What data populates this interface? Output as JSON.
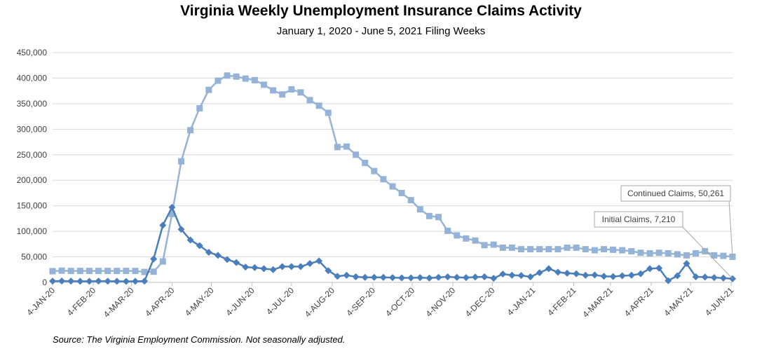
{
  "chart_data": {
    "type": "line",
    "title": "Virginia Weekly Unemployment Insurance Claims Activity",
    "subtitle": "January 1, 2020 - June 5, 2021 Filing Weeks",
    "source": "Source: The Virginia Employment Commission. Not seasonally adjusted.",
    "y_ticks": [
      "0",
      "50,000",
      "100,000",
      "150,000",
      "200,000",
      "250,000",
      "300,000",
      "350,000",
      "400,000",
      "450,000"
    ],
    "ylim": [
      0,
      450000
    ],
    "x_tick_labels": [
      "4-JAN-20",
      "4-FEB-20",
      "4-MAR-20",
      "4-APR-20",
      "4-MAY-20",
      "4-JUN-20",
      "4-JUL-20",
      "4-AUG-20",
      "4-SEP-20",
      "4-OCT-20",
      "4-NOV-20",
      "4-DEC-20",
      "4-JAN-21",
      "4-FEB-21",
      "4-MAR-21",
      "4-APR-21",
      "4-MAY-21",
      "4-JUN-21"
    ],
    "x_tick_dates": [
      "2020-01-04",
      "2020-02-04",
      "2020-03-04",
      "2020-04-04",
      "2020-05-04",
      "2020-06-04",
      "2020-07-04",
      "2020-08-04",
      "2020-09-04",
      "2020-10-04",
      "2020-11-04",
      "2020-12-04",
      "2021-01-04",
      "2021-02-04",
      "2021-03-04",
      "2021-04-04",
      "2021-05-04",
      "2021-06-04"
    ],
    "x_range": [
      "2020-01-04",
      "2021-06-05"
    ],
    "grid": true,
    "series": [
      {
        "name": "Initial Claims",
        "color": "#4a7ebb",
        "marker": "diamond",
        "points": [
          [
            "2020-01-04",
            2500
          ],
          [
            "2020-01-11",
            2800
          ],
          [
            "2020-01-18",
            2500
          ],
          [
            "2020-01-25",
            2300
          ],
          [
            "2020-02-01",
            2300
          ],
          [
            "2020-02-08",
            2500
          ],
          [
            "2020-02-15",
            2400
          ],
          [
            "2020-02-22",
            2200
          ],
          [
            "2020-02-29",
            2100
          ],
          [
            "2020-03-07",
            2200
          ],
          [
            "2020-03-14",
            2500
          ],
          [
            "2020-03-21",
            46000
          ],
          [
            "2020-03-28",
            112000
          ],
          [
            "2020-04-04",
            147000
          ],
          [
            "2020-04-11",
            104000
          ],
          [
            "2020-04-18",
            83000
          ],
          [
            "2020-04-25",
            72000
          ],
          [
            "2020-05-02",
            59000
          ],
          [
            "2020-05-09",
            53000
          ],
          [
            "2020-05-16",
            45000
          ],
          [
            "2020-05-23",
            39000
          ],
          [
            "2020-05-30",
            30000
          ],
          [
            "2020-06-06",
            29000
          ],
          [
            "2020-06-13",
            27000
          ],
          [
            "2020-06-20",
            25000
          ],
          [
            "2020-06-27",
            31000
          ],
          [
            "2020-07-04",
            31000
          ],
          [
            "2020-07-11",
            31000
          ],
          [
            "2020-07-18",
            37000
          ],
          [
            "2020-07-25",
            42000
          ],
          [
            "2020-08-01",
            23000
          ],
          [
            "2020-08-08",
            12000
          ],
          [
            "2020-08-15",
            14000
          ],
          [
            "2020-08-22",
            11000
          ],
          [
            "2020-08-29",
            10000
          ],
          [
            "2020-09-05",
            10000
          ],
          [
            "2020-09-12",
            10000
          ],
          [
            "2020-09-19",
            9500
          ],
          [
            "2020-09-26",
            9000
          ],
          [
            "2020-10-03",
            9000
          ],
          [
            "2020-10-10",
            9500
          ],
          [
            "2020-10-17",
            8500
          ],
          [
            "2020-10-24",
            10000
          ],
          [
            "2020-10-31",
            11000
          ],
          [
            "2020-11-07",
            10000
          ],
          [
            "2020-11-14",
            9500
          ],
          [
            "2020-11-21",
            10500
          ],
          [
            "2020-11-28",
            11000
          ],
          [
            "2020-12-05",
            8000
          ],
          [
            "2020-12-12",
            16500
          ],
          [
            "2020-12-19",
            14000
          ],
          [
            "2020-12-26",
            13500
          ],
          [
            "2021-01-02",
            11000
          ],
          [
            "2021-01-09",
            19000
          ],
          [
            "2021-01-16",
            27000
          ],
          [
            "2021-01-23",
            20000
          ],
          [
            "2021-01-30",
            18000
          ],
          [
            "2021-02-06",
            17000
          ],
          [
            "2021-02-13",
            14000
          ],
          [
            "2021-02-20",
            14500
          ],
          [
            "2021-02-27",
            12000
          ],
          [
            "2021-03-06",
            11500
          ],
          [
            "2021-03-13",
            13000
          ],
          [
            "2021-03-20",
            14000
          ],
          [
            "2021-03-27",
            17000
          ],
          [
            "2021-04-03",
            27000
          ],
          [
            "2021-04-10",
            28000
          ],
          [
            "2021-04-17",
            3500
          ],
          [
            "2021-04-24",
            13000
          ],
          [
            "2021-05-01",
            37000
          ],
          [
            "2021-05-08",
            11000
          ],
          [
            "2021-05-15",
            10500
          ],
          [
            "2021-05-22",
            9500
          ],
          [
            "2021-05-29",
            8500
          ],
          [
            "2021-06-05",
            7210
          ]
        ]
      },
      {
        "name": "Continued Claims",
        "color": "#95b3d7",
        "marker": "square",
        "points": [
          [
            "2020-01-04",
            22000
          ],
          [
            "2020-01-11",
            23000
          ],
          [
            "2020-01-18",
            22500
          ],
          [
            "2020-01-25",
            22500
          ],
          [
            "2020-02-01",
            22500
          ],
          [
            "2020-02-08",
            22500
          ],
          [
            "2020-02-15",
            22500
          ],
          [
            "2020-02-22",
            22500
          ],
          [
            "2020-02-29",
            22500
          ],
          [
            "2020-03-07",
            22500
          ],
          [
            "2020-03-14",
            20500
          ],
          [
            "2020-03-21",
            21000
          ],
          [
            "2020-03-28",
            41000
          ],
          [
            "2020-04-04",
            134000
          ],
          [
            "2020-04-11",
            237000
          ],
          [
            "2020-04-18",
            298000
          ],
          [
            "2020-04-25",
            341000
          ],
          [
            "2020-05-02",
            377000
          ],
          [
            "2020-05-09",
            395000
          ],
          [
            "2020-05-16",
            405000
          ],
          [
            "2020-05-23",
            403000
          ],
          [
            "2020-05-30",
            399000
          ],
          [
            "2020-06-06",
            396000
          ],
          [
            "2020-06-13",
            387000
          ],
          [
            "2020-06-20",
            376000
          ],
          [
            "2020-06-27",
            368000
          ],
          [
            "2020-07-04",
            378000
          ],
          [
            "2020-07-11",
            372000
          ],
          [
            "2020-07-18",
            357000
          ],
          [
            "2020-07-25",
            346000
          ],
          [
            "2020-08-01",
            332000
          ],
          [
            "2020-08-08",
            265000
          ],
          [
            "2020-08-15",
            266000
          ],
          [
            "2020-08-22",
            250000
          ],
          [
            "2020-08-29",
            234000
          ],
          [
            "2020-09-05",
            218000
          ],
          [
            "2020-09-12",
            202000
          ],
          [
            "2020-09-19",
            188000
          ],
          [
            "2020-09-26",
            175000
          ],
          [
            "2020-10-03",
            161000
          ],
          [
            "2020-10-10",
            143000
          ],
          [
            "2020-10-17",
            130000
          ],
          [
            "2020-10-24",
            128000
          ],
          [
            "2020-10-31",
            101000
          ],
          [
            "2020-11-07",
            92000
          ],
          [
            "2020-11-14",
            86000
          ],
          [
            "2020-11-21",
            82000
          ],
          [
            "2020-11-28",
            73000
          ],
          [
            "2020-12-05",
            74000
          ],
          [
            "2020-12-12",
            68000
          ],
          [
            "2020-12-19",
            68000
          ],
          [
            "2020-12-26",
            65000
          ],
          [
            "2021-01-02",
            65000
          ],
          [
            "2021-01-09",
            65000
          ],
          [
            "2021-01-16",
            65000
          ],
          [
            "2021-01-23",
            65000
          ],
          [
            "2021-01-30",
            68000
          ],
          [
            "2021-02-06",
            68000
          ],
          [
            "2021-02-13",
            65000
          ],
          [
            "2021-02-20",
            63000
          ],
          [
            "2021-02-27",
            65000
          ],
          [
            "2021-03-06",
            64000
          ],
          [
            "2021-03-13",
            63000
          ],
          [
            "2021-03-20",
            61000
          ],
          [
            "2021-03-27",
            58000
          ],
          [
            "2021-04-03",
            57000
          ],
          [
            "2021-04-10",
            58000
          ],
          [
            "2021-04-17",
            57000
          ],
          [
            "2021-04-24",
            55000
          ],
          [
            "2021-05-01",
            53000
          ],
          [
            "2021-05-08",
            57000
          ],
          [
            "2021-05-15",
            61000
          ],
          [
            "2021-05-22",
            53000
          ],
          [
            "2021-05-29",
            52000
          ],
          [
            "2021-06-05",
            50261
          ]
        ]
      }
    ],
    "annotations": [
      {
        "series": "Continued Claims",
        "text": "Continued Claims, 50,261"
      },
      {
        "series": "Initial Claims",
        "text": "Initial Claims, 7,210"
      }
    ]
  }
}
